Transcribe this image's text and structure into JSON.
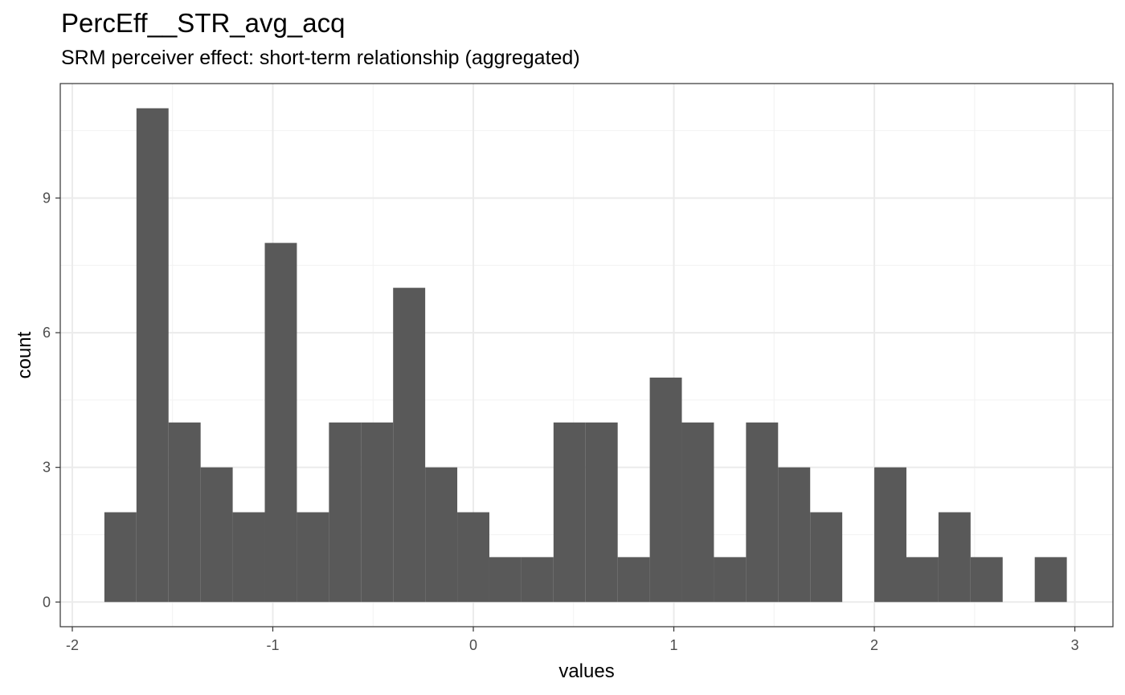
{
  "chart_data": {
    "type": "bar",
    "title": "PercEff__STR_avg_acq",
    "subtitle": "SRM perceiver effect: short-term relationship (aggregated)",
    "xlabel": "values",
    "ylabel": "count",
    "xlim": [
      -2.06,
      3.19
    ],
    "ylim": [
      -0.55,
      11.55
    ],
    "x_ticks": [
      -2,
      -1,
      0,
      1,
      2,
      3
    ],
    "y_ticks": [
      0,
      3,
      6,
      9
    ],
    "grid": true,
    "bar_color": "#595959",
    "bins": {
      "start": -1.84,
      "width": 0.16,
      "counts": [
        2,
        11,
        4,
        3,
        2,
        8,
        2,
        4,
        4,
        7,
        3,
        2,
        1,
        1,
        4,
        4,
        1,
        5,
        4,
        1,
        4,
        3,
        2,
        0,
        3,
        1,
        2,
        1,
        0,
        1
      ]
    }
  }
}
